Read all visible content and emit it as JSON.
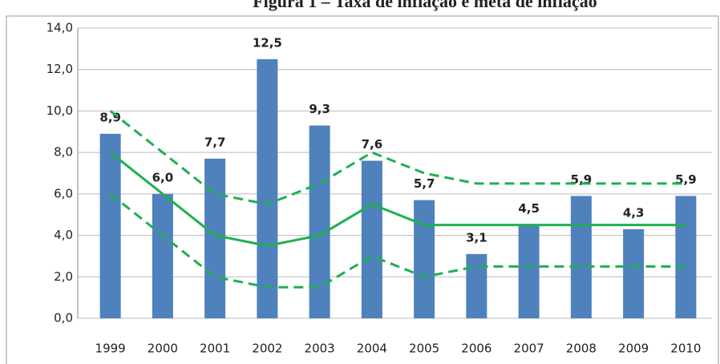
{
  "chart_data": {
    "type": "bar",
    "title": "Figura 1 – Taxa de inflação e meta de inflação",
    "categories": [
      "1999",
      "2000",
      "2001",
      "2002",
      "2003",
      "2004",
      "2005",
      "2006",
      "2007",
      "2008",
      "2009",
      "2010"
    ],
    "series": [
      {
        "type": "bar",
        "color": "#4f81bd",
        "values": [
          8.9,
          6.0,
          7.7,
          12.5,
          9.3,
          7.6,
          5.7,
          3.1,
          4.5,
          5.9,
          4.3,
          5.9
        ],
        "value_labels": [
          "8,9",
          "6,0",
          "7,7",
          "12,5",
          "9,3",
          "7,6",
          "5,7",
          "3,1",
          "4,5",
          "5,9",
          "4,3",
          "5,9"
        ]
      },
      {
        "type": "line",
        "color": "#1eb050",
        "dashed": false,
        "values": [
          8.0,
          6.0,
          4.0,
          3.5,
          4.0,
          5.5,
          4.5,
          4.5,
          4.5,
          4.5,
          4.5,
          4.5
        ]
      },
      {
        "type": "line",
        "color": "#1eb050",
        "dashed": true,
        "values": [
          10.0,
          8.0,
          6.0,
          5.5,
          6.5,
          8.0,
          7.0,
          6.5,
          6.5,
          6.5,
          6.5,
          6.5
        ]
      },
      {
        "type": "line",
        "color": "#1eb050",
        "dashed": true,
        "values": [
          6.0,
          4.0,
          2.0,
          1.5,
          1.5,
          3.0,
          2.0,
          2.5,
          2.5,
          2.5,
          2.5,
          2.5
        ]
      }
    ],
    "ylim": [
      0,
      14
    ],
    "yticks": [
      {
        "value": 0,
        "label": "0,0"
      },
      {
        "value": 2,
        "label": "2,0"
      },
      {
        "value": 4,
        "label": "4,0"
      },
      {
        "value": 6,
        "label": "6,0"
      },
      {
        "value": 8,
        "label": "8,0"
      },
      {
        "value": 10,
        "label": "10,0"
      },
      {
        "value": 12,
        "label": "12,0"
      },
      {
        "value": 14,
        "label": "14,0"
      }
    ],
    "grid": true
  }
}
